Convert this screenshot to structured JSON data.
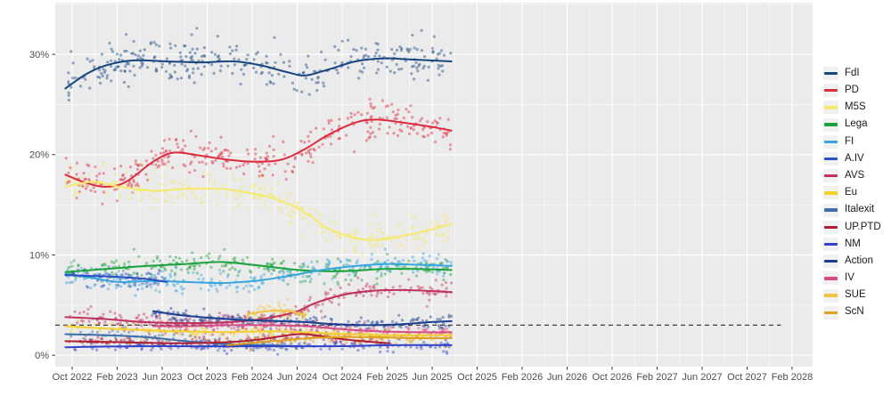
{
  "layout_colors": {
    "page_bg": "#ffffff",
    "panel_bg": "#ebebeb",
    "grid_major": "#ffffff",
    "grid_minor": "#f7f7f7",
    "axis_text": "#4d4d4d",
    "axis_tick": "#333333",
    "threshold": "#404040",
    "legend_text": "#1a1a1a",
    "legend_key_bg": "#f1f1f1"
  },
  "chart_data": {
    "type": "scatter",
    "title": "",
    "xlabel": "",
    "ylabel": "",
    "description": "Opinion polling trend lines with scatter points for Italian political parties, Oct 2022 - Jun 2025, with empty axis space projected to Feb 2028 and a dashed 3% threshold line",
    "grid": true,
    "legend_position": "right",
    "y_axis": {
      "ticks": [
        {
          "label": "0%",
          "value": 0
        },
        {
          "label": "10%",
          "value": 10
        },
        {
          "label": "20%",
          "value": 20
        },
        {
          "label": "30%",
          "value": 30
        }
      ],
      "minor_values": [
        5,
        15,
        25,
        35
      ],
      "range": [
        0,
        35.3
      ]
    },
    "x_axis": {
      "ticks": [
        {
          "label": "Oct 2022",
          "t": 2022.75
        },
        {
          "label": "Feb 2023",
          "t": 2023.083
        },
        {
          "label": "Jun 2023",
          "t": 2023.417
        },
        {
          "label": "Oct 2023",
          "t": 2023.75
        },
        {
          "label": "Feb 2024",
          "t": 2024.083
        },
        {
          "label": "Jun 2024",
          "t": 2024.417
        },
        {
          "label": "Oct 2024",
          "t": 2024.75
        },
        {
          "label": "Feb 2025",
          "t": 2025.083
        },
        {
          "label": "Jun 2025",
          "t": 2025.417
        },
        {
          "label": "Oct 2025",
          "t": 2025.75
        },
        {
          "label": "Feb 2026",
          "t": 2026.083
        },
        {
          "label": "Jun 2026",
          "t": 2026.417
        },
        {
          "label": "Oct 2026",
          "t": 2026.75
        },
        {
          "label": "Feb 2027",
          "t": 2027.083
        },
        {
          "label": "Jun 2027",
          "t": 2027.417
        },
        {
          "label": "Oct 2027",
          "t": 2027.75
        },
        {
          "label": "Feb 2028",
          "t": 2028.083
        }
      ]
    },
    "threshold_line": {
      "value": 3,
      "style": "dashed",
      "t_end": 2028.0
    },
    "series": [
      {
        "name": "FdI",
        "color": "#17457f",
        "scatter_n": 340,
        "scatter_sd": 1.0,
        "trend": [
          [
            2022.7,
            26.6
          ],
          [
            2022.85,
            28.0
          ],
          [
            2023.0,
            28.9
          ],
          [
            2023.2,
            29.4
          ],
          [
            2023.45,
            29.3
          ],
          [
            2023.7,
            29.2
          ],
          [
            2023.95,
            29.3
          ],
          [
            2024.15,
            28.9
          ],
          [
            2024.35,
            28.2
          ],
          [
            2024.48,
            27.9
          ],
          [
            2024.65,
            28.5
          ],
          [
            2024.85,
            29.3
          ],
          [
            2025.05,
            29.6
          ],
          [
            2025.25,
            29.5
          ],
          [
            2025.56,
            29.3
          ]
        ]
      },
      {
        "name": "PD",
        "color": "#dc2b3e",
        "scatter_n": 340,
        "scatter_sd": 0.9,
        "trend": [
          [
            2022.7,
            18.0
          ],
          [
            2022.85,
            17.2
          ],
          [
            2023.0,
            16.8
          ],
          [
            2023.15,
            17.3
          ],
          [
            2023.35,
            19.3
          ],
          [
            2023.5,
            20.2
          ],
          [
            2023.7,
            19.9
          ],
          [
            2023.9,
            19.5
          ],
          [
            2024.1,
            19.3
          ],
          [
            2024.3,
            19.5
          ],
          [
            2024.48,
            20.6
          ],
          [
            2024.65,
            22.0
          ],
          [
            2024.85,
            23.2
          ],
          [
            2025.0,
            23.5
          ],
          [
            2025.2,
            23.2
          ],
          [
            2025.4,
            22.8
          ],
          [
            2025.56,
            22.4
          ]
        ]
      },
      {
        "name": "M5S",
        "color": "#f5e96e",
        "scatter_n": 320,
        "scatter_sd": 0.8,
        "trend": [
          [
            2022.7,
            16.8
          ],
          [
            2022.9,
            17.3
          ],
          [
            2023.1,
            16.8
          ],
          [
            2023.35,
            16.4
          ],
          [
            2023.6,
            16.6
          ],
          [
            2023.85,
            16.6
          ],
          [
            2024.05,
            16.2
          ],
          [
            2024.25,
            15.6
          ],
          [
            2024.48,
            14.2
          ],
          [
            2024.65,
            12.6
          ],
          [
            2024.85,
            11.7
          ],
          [
            2025.0,
            11.5
          ],
          [
            2025.2,
            11.9
          ],
          [
            2025.4,
            12.5
          ],
          [
            2025.56,
            13.1
          ]
        ]
      },
      {
        "name": "Lega",
        "color": "#1aa23c",
        "scatter_n": 260,
        "scatter_sd": 0.55,
        "trend": [
          [
            2022.7,
            8.3
          ],
          [
            2023.0,
            8.6
          ],
          [
            2023.3,
            8.9
          ],
          [
            2023.6,
            9.1
          ],
          [
            2023.85,
            9.3
          ],
          [
            2024.1,
            9.0
          ],
          [
            2024.35,
            8.6
          ],
          [
            2024.55,
            8.4
          ],
          [
            2024.8,
            8.4
          ],
          [
            2025.05,
            8.6
          ],
          [
            2025.3,
            8.6
          ],
          [
            2025.56,
            8.5
          ]
        ]
      },
      {
        "name": "FI",
        "color": "#36a6dc",
        "scatter_n": 260,
        "scatter_sd": 0.55,
        "trend": [
          [
            2022.7,
            8.1
          ],
          [
            2022.9,
            7.7
          ],
          [
            2023.1,
            7.3
          ],
          [
            2023.35,
            7.4
          ],
          [
            2023.6,
            7.3
          ],
          [
            2023.85,
            7.2
          ],
          [
            2024.1,
            7.4
          ],
          [
            2024.35,
            7.9
          ],
          [
            2024.6,
            8.5
          ],
          [
            2024.85,
            8.9
          ],
          [
            2025.1,
            9.1
          ],
          [
            2025.35,
            9.0
          ],
          [
            2025.56,
            8.9
          ]
        ]
      },
      {
        "name": "A.IV",
        "color": "#2a4fc0",
        "scatter_n": 80,
        "scatter_sd": 0.5,
        "trend": [
          [
            2022.7,
            8.0
          ],
          [
            2022.9,
            7.9
          ],
          [
            2023.1,
            7.8
          ],
          [
            2023.3,
            7.6
          ],
          [
            2023.45,
            7.3
          ]
        ]
      },
      {
        "name": "AVS",
        "color": "#c1315b",
        "scatter_n": 250,
        "scatter_sd": 0.45,
        "trend": [
          [
            2022.7,
            3.8
          ],
          [
            2023.0,
            3.6
          ],
          [
            2023.3,
            3.3
          ],
          [
            2023.6,
            3.2
          ],
          [
            2023.9,
            3.3
          ],
          [
            2024.15,
            3.6
          ],
          [
            2024.4,
            4.3
          ],
          [
            2024.55,
            5.2
          ],
          [
            2024.75,
            6.0
          ],
          [
            2024.95,
            6.4
          ],
          [
            2025.2,
            6.5
          ],
          [
            2025.56,
            6.3
          ]
        ]
      },
      {
        "name": "Eu",
        "color": "#f3d02b",
        "scatter_n": 170,
        "scatter_sd": 0.3,
        "trend": [
          [
            2022.7,
            2.9
          ],
          [
            2023.1,
            2.6
          ],
          [
            2023.5,
            2.4
          ],
          [
            2023.9,
            2.3
          ],
          [
            2024.2,
            2.4
          ],
          [
            2024.48,
            2.3
          ],
          [
            2024.8,
            2.1
          ],
          [
            2025.1,
            2.0
          ],
          [
            2025.56,
            2.0
          ]
        ]
      },
      {
        "name": "Italexit",
        "color": "#3e6ea9",
        "scatter_n": 100,
        "scatter_sd": 0.3,
        "trend": [
          [
            2022.7,
            2.1
          ],
          [
            2023.0,
            2.0
          ],
          [
            2023.3,
            1.8
          ],
          [
            2023.6,
            1.4
          ],
          [
            2023.9,
            1.1
          ],
          [
            2024.2,
            1.0
          ],
          [
            2024.45,
            0.9
          ]
        ]
      },
      {
        "name": "UP.PTD",
        "color": "#b01e2f",
        "scatter_n": 150,
        "scatter_sd": 0.3,
        "trend": [
          [
            2022.7,
            1.4
          ],
          [
            2023.1,
            1.3
          ],
          [
            2023.5,
            1.2
          ],
          [
            2023.9,
            1.3
          ],
          [
            2024.15,
            1.6
          ],
          [
            2024.35,
            2.0
          ],
          [
            2024.48,
            2.1
          ],
          [
            2024.7,
            1.7
          ],
          [
            2024.9,
            1.4
          ],
          [
            2025.1,
            1.2
          ]
        ]
      },
      {
        "name": "NM",
        "color": "#3142c8",
        "scatter_n": 170,
        "scatter_sd": 0.28,
        "trend": [
          [
            2022.7,
            0.8
          ],
          [
            2023.2,
            0.9
          ],
          [
            2023.7,
            0.9
          ],
          [
            2024.2,
            0.9
          ],
          [
            2024.7,
            0.9
          ],
          [
            2025.1,
            1.0
          ],
          [
            2025.56,
            1.0
          ]
        ]
      },
      {
        "name": "Action",
        "color": "#1a3e91",
        "scatter_n": 200,
        "scatter_sd": 0.35,
        "trend": [
          [
            2023.35,
            4.4
          ],
          [
            2023.55,
            4.0
          ],
          [
            2023.8,
            3.7
          ],
          [
            2024.05,
            3.5
          ],
          [
            2024.3,
            3.4
          ],
          [
            2024.48,
            3.3
          ],
          [
            2024.7,
            3.1
          ],
          [
            2024.95,
            3.0
          ],
          [
            2025.2,
            3.1
          ],
          [
            2025.4,
            3.3
          ],
          [
            2025.56,
            3.4
          ]
        ]
      },
      {
        "name": "IV",
        "color": "#d74b88",
        "scatter_n": 200,
        "scatter_sd": 0.35,
        "trend": [
          [
            2023.35,
            2.9
          ],
          [
            2023.6,
            2.9
          ],
          [
            2023.9,
            3.0
          ],
          [
            2024.2,
            3.0
          ],
          [
            2024.48,
            2.9
          ],
          [
            2024.75,
            2.6
          ],
          [
            2025.0,
            2.4
          ],
          [
            2025.3,
            2.3
          ],
          [
            2025.56,
            2.3
          ]
        ]
      },
      {
        "name": "SUE",
        "color": "#efc443",
        "scatter_n": 55,
        "scatter_sd": 0.35,
        "trend": [
          [
            2024.05,
            4.1
          ],
          [
            2024.2,
            4.4
          ],
          [
            2024.35,
            4.4
          ],
          [
            2024.48,
            4.0
          ]
        ]
      },
      {
        "name": "ScN",
        "color": "#dda21e",
        "scatter_n": 100,
        "scatter_sd": 0.3,
        "trend": [
          [
            2023.9,
            1.0
          ],
          [
            2024.15,
            1.3
          ],
          [
            2024.4,
            1.6
          ],
          [
            2024.7,
            1.8
          ],
          [
            2025.0,
            1.8
          ],
          [
            2025.3,
            1.7
          ],
          [
            2025.56,
            1.7
          ]
        ]
      }
    ]
  }
}
